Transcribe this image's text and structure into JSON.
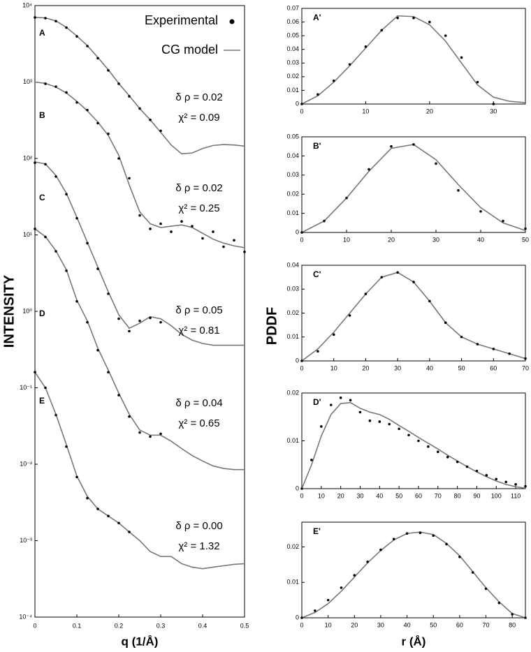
{
  "chart_data": [
    {
      "type": "line",
      "log_y": true,
      "xlabel": "q (1/Å)",
      "ylabel": "INTENSITY",
      "xlim": [
        0,
        0.5
      ],
      "ylim": [
        0.0001,
        10000
      ],
      "xticks": [
        0,
        0.1,
        0.2,
        0.3,
        0.4,
        0.5
      ],
      "yticks": [
        {
          "value": 0.0001,
          "label": "10⁻⁴"
        },
        {
          "value": 0.001,
          "label": "10⁻³"
        },
        {
          "value": 0.01,
          "label": "10⁻²"
        },
        {
          "value": 0.1,
          "label": "10⁻¹"
        },
        {
          "value": 1,
          "label": "10⁰"
        },
        {
          "value": 10,
          "label": "10¹"
        },
        {
          "value": 100,
          "label": "10²"
        },
        {
          "value": 1000,
          "label": "10³"
        },
        {
          "value": 10000,
          "label": "10⁴"
        }
      ],
      "legend": "top-right",
      "series": [
        {
          "name": "Experimental",
          "color": "#000000"
        },
        {
          "name": "CG model",
          "color": "#777777"
        }
      ],
      "x": [
        0,
        0.025,
        0.05,
        0.075,
        0.1,
        0.125,
        0.15,
        0.175,
        0.2,
        0.225,
        0.25,
        0.275,
        0.3,
        0.325,
        0.35,
        0.375,
        0.4,
        0.425,
        0.45,
        0.475,
        0.5
      ],
      "curves": [
        {
          "label": "A",
          "annotations": [
            "δ ρ = 0.02",
            "χ² = 0.09"
          ],
          "experimental": [
            7000,
            6850,
            6250,
            5150,
            3950,
            2950,
            2050,
            1420,
            950,
            650,
            450,
            320,
            230,
            null,
            null,
            null,
            null,
            null,
            null,
            null,
            null
          ],
          "model": [
            7000,
            6900,
            6300,
            5200,
            4000,
            3000,
            2100,
            1450,
            960,
            660,
            450,
            320,
            220,
            150,
            115,
            118,
            135,
            148,
            152,
            150,
            145
          ]
        },
        {
          "label": "B",
          "annotations": [
            "δ ρ = 0.02",
            "χ² = 0.25"
          ],
          "experimental": [
            null,
            950,
            870,
            730,
            540,
            430,
            290,
            210,
            100,
            55,
            18,
            12,
            14,
            11,
            15,
            13,
            9,
            11,
            7,
            8.5,
            6
          ],
          "model": [
            1000,
            960,
            860,
            720,
            560,
            420,
            300,
            200,
            110,
            45,
            20,
            14,
            12.5,
            13,
            13.5,
            12.5,
            10.5,
            8.8,
            7.8,
            7.2,
            6.8
          ]
        },
        {
          "label": "C",
          "annotations": [
            "δ ρ = 0.05",
            "χ² = 0.81"
          ],
          "experimental": [
            88,
            84,
            58,
            34,
            16.5,
            7.8,
            3.6,
            1.7,
            0.8,
            0.55,
            0.75,
            0.82,
            0.72,
            null,
            null,
            null,
            null,
            null,
            null,
            null,
            null
          ],
          "model": [
            90,
            85,
            60,
            35,
            17,
            8,
            3.8,
            1.8,
            0.9,
            0.6,
            0.7,
            0.85,
            0.8,
            0.65,
            0.5,
            0.42,
            0.38,
            0.36,
            0.36,
            0.36,
            0.36
          ]
        },
        {
          "label": "D",
          "annotations": [
            "δ ρ = 0.04",
            "χ² = 0.65"
          ],
          "experimental": [
            12,
            9.4,
            6.1,
            3.4,
            1.35,
            0.72,
            0.31,
            0.16,
            0.08,
            0.042,
            0.026,
            0.023,
            0.025,
            null,
            null,
            null,
            null,
            null,
            null,
            null,
            null
          ],
          "model": [
            12,
            9.5,
            6.2,
            3.5,
            1.4,
            0.75,
            0.33,
            0.17,
            0.085,
            0.045,
            0.028,
            0.024,
            0.024,
            0.02,
            0.016,
            0.013,
            0.011,
            0.0095,
            0.0088,
            0.0085,
            0.0085
          ]
        },
        {
          "label": "E",
          "annotations": [
            "δ ρ = 0.00",
            "χ² = 1.32"
          ],
          "experimental": [
            0.16,
            0.1,
            0.044,
            0.017,
            0.0068,
            0.0036,
            0.0026,
            0.0021,
            0.0017,
            0.0013,
            null,
            null,
            null,
            null,
            null,
            null,
            null,
            null,
            null,
            null,
            null
          ],
          "model": [
            0.16,
            0.1,
            0.045,
            0.018,
            0.007,
            0.0038,
            0.0026,
            0.0021,
            0.0017,
            0.0013,
            0.001,
            0.00072,
            0.00062,
            0.00062,
            0.0005,
            0.00045,
            0.00043,
            0.00045,
            0.00047,
            0.00049,
            0.0005
          ]
        }
      ]
    },
    {
      "type": "line",
      "label": "A'",
      "ylabel": "PDDF",
      "xlim": [
        0,
        35
      ],
      "ylim": [
        0,
        0.07
      ],
      "xticks": [
        0,
        10,
        20,
        30
      ],
      "yticks": [
        0,
        0.01,
        0.02,
        0.03,
        0.04,
        0.05,
        0.06,
        0.07
      ],
      "x": [
        0,
        2.5,
        5,
        7.5,
        10,
        12.5,
        15,
        17.5,
        20,
        22.5,
        25,
        27.5,
        30,
        32.5,
        35
      ],
      "experimental": [
        0,
        0.007,
        0.017,
        0.029,
        0.042,
        0.054,
        0.063,
        0.063,
        0.06,
        0.05,
        0.034,
        0.016,
        0,
        null,
        null
      ],
      "model": [
        0,
        0.006,
        0.016,
        0.028,
        0.041,
        0.054,
        0.0645,
        0.064,
        0.058,
        0.046,
        0.03,
        0.014,
        0.005,
        0.002,
        0.001
      ]
    },
    {
      "type": "line",
      "label": "B'",
      "xlim": [
        0,
        50
      ],
      "ylim": [
        0,
        0.05
      ],
      "xticks": [
        0,
        10,
        20,
        30,
        40,
        50
      ],
      "yticks": [
        0,
        0.01,
        0.02,
        0.03,
        0.04,
        0.05
      ],
      "x": [
        0,
        5,
        10,
        15,
        20,
        25,
        30,
        35,
        40,
        45,
        50
      ],
      "experimental": [
        0,
        0.006,
        0.018,
        0.033,
        0.045,
        0.046,
        0.036,
        0.022,
        0.011,
        0.006,
        0.002
      ],
      "model": [
        0,
        0.006,
        0.018,
        0.032,
        0.044,
        0.046,
        0.038,
        0.025,
        0.013,
        0.005,
        0.001
      ]
    },
    {
      "type": "line",
      "label": "C'",
      "xlim": [
        0,
        70
      ],
      "ylim": [
        0,
        0.04
      ],
      "xticks": [
        0,
        10,
        20,
        30,
        40,
        50,
        60,
        70
      ],
      "yticks": [
        0,
        0.01,
        0.02,
        0.03,
        0.04
      ],
      "x": [
        0,
        5,
        10,
        15,
        20,
        25,
        30,
        35,
        40,
        45,
        50,
        55,
        60,
        65,
        70
      ],
      "experimental": [
        0,
        0.004,
        0.011,
        0.019,
        0.028,
        0.035,
        0.037,
        0.033,
        0.025,
        0.016,
        0.01,
        0.007,
        0.005,
        0.003,
        0.001
      ],
      "model": [
        0,
        0.005,
        0.012,
        0.02,
        0.028,
        0.035,
        0.037,
        0.033,
        0.025,
        0.016,
        0.01,
        0.007,
        0.005,
        0.003,
        0.001
      ]
    },
    {
      "type": "line",
      "label": "D'",
      "xlim": [
        0,
        115
      ],
      "ylim": [
        0,
        0.02
      ],
      "xticks": [
        0,
        10,
        20,
        30,
        40,
        50,
        60,
        70,
        80,
        90,
        100,
        110
      ],
      "yticks": [
        0,
        0.01,
        0.02
      ],
      "x": [
        0,
        5,
        10,
        15,
        20,
        25,
        30,
        35,
        40,
        45,
        50,
        55,
        60,
        65,
        70,
        75,
        80,
        85,
        90,
        95,
        100,
        105,
        110,
        115
      ],
      "experimental": [
        0,
        0.006,
        0.013,
        0.0175,
        0.019,
        0.0185,
        0.016,
        0.0142,
        0.014,
        0.0135,
        0.0125,
        0.0112,
        0.01,
        0.0088,
        0.0077,
        0.0066,
        0.0056,
        0.0046,
        0.0037,
        0.0028,
        0.002,
        0.0014,
        0.0009,
        0.0005
      ],
      "model": [
        0,
        0.005,
        0.011,
        0.0155,
        0.0178,
        0.018,
        0.0168,
        0.016,
        0.0155,
        0.0145,
        0.0132,
        0.012,
        0.0107,
        0.0095,
        0.0083,
        0.007,
        0.0058,
        0.0046,
        0.0035,
        0.0025,
        0.0016,
        0.0009,
        0.0004,
        0.0001
      ]
    },
    {
      "type": "line",
      "label": "E'",
      "xlabel": "r (Å)",
      "xlim": [
        0,
        85
      ],
      "ylim": [
        0,
        0.027
      ],
      "xticks": [
        0,
        10,
        20,
        30,
        40,
        50,
        60,
        70,
        80
      ],
      "yticks": [
        0,
        0.01,
        0.02
      ],
      "x": [
        0,
        5,
        10,
        15,
        20,
        25,
        30,
        35,
        40,
        45,
        50,
        55,
        60,
        65,
        70,
        75,
        80,
        85
      ],
      "experimental": [
        0,
        0.002,
        0.005,
        0.0085,
        0.012,
        0.0158,
        0.0192,
        0.0222,
        0.0238,
        0.024,
        0.0232,
        0.0208,
        0.0172,
        0.0128,
        0.0082,
        0.0042,
        0.001,
        0
      ],
      "model": [
        0,
        0.0015,
        0.004,
        0.0075,
        0.0115,
        0.0155,
        0.019,
        0.022,
        0.0238,
        0.0242,
        0.0235,
        0.021,
        0.0175,
        0.013,
        0.0085,
        0.0045,
        0.0012,
        0
      ]
    }
  ]
}
